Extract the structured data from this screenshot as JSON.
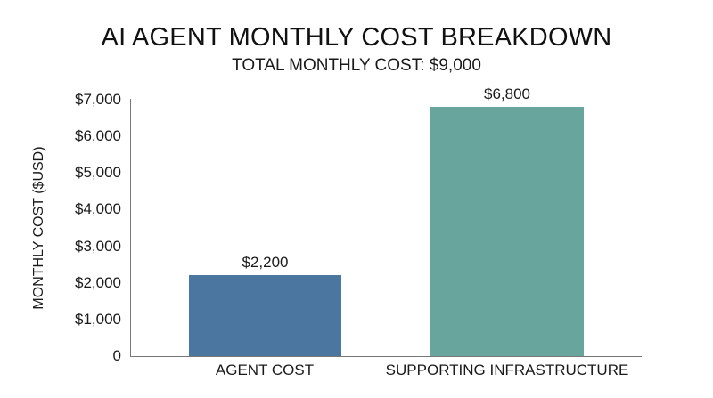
{
  "chart_data": {
    "type": "bar",
    "title": "AI AGENT MONTHLY COST BREAKDOWN",
    "subtitle": "TOTAL MONTHLY COST: $9,000",
    "xlabel": "",
    "ylabel": "MONTHLY COST ($USD)",
    "categories": [
      "AGENT COST",
      "SUPPORTING INFRASTRUCTURE"
    ],
    "values": [
      2200,
      6800
    ],
    "value_labels": [
      "$2,200",
      "$6,800"
    ],
    "colors": [
      "#4a76a0",
      "#68a59c"
    ],
    "ylim": [
      0,
      7000
    ],
    "yticks": [
      0,
      1000,
      2000,
      3000,
      4000,
      5000,
      6000,
      7000
    ],
    "ytick_labels": [
      "0",
      "$1,000",
      "$2,000",
      "$3,000",
      "$4,000",
      "$5,000",
      "$6,000",
      "$7,000"
    ],
    "grid": false,
    "legend": null
  }
}
